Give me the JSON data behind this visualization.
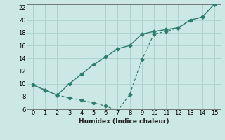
{
  "line1_x": [
    0,
    1,
    2,
    3,
    4,
    5,
    6,
    7,
    8,
    9,
    10,
    11,
    12,
    13,
    14,
    15
  ],
  "line1_y": [
    9.8,
    9.0,
    8.2,
    10.0,
    11.5,
    13.0,
    14.2,
    15.5,
    16.0,
    17.8,
    18.2,
    18.5,
    18.8,
    20.0,
    20.5,
    22.5
  ],
  "line2_x": [
    0,
    1,
    2,
    3,
    4,
    5,
    6,
    7,
    8,
    9,
    10,
    11,
    12,
    13,
    14,
    15
  ],
  "line2_y": [
    9.8,
    9.0,
    8.2,
    7.8,
    7.4,
    7.0,
    6.5,
    5.8,
    8.3,
    13.8,
    17.8,
    18.2,
    18.8,
    20.0,
    20.5,
    22.5
  ],
  "color": "#2e7d6e",
  "bg_color": "#cce8e4",
  "grid_color": "#afd4ce",
  "xlabel": "Humidex (Indice chaleur)",
  "xlim": [
    -0.5,
    15.5
  ],
  "ylim": [
    6,
    22.5
  ],
  "xticks": [
    0,
    1,
    2,
    3,
    4,
    5,
    6,
    7,
    8,
    9,
    10,
    11,
    12,
    13,
    14,
    15
  ],
  "yticks": [
    6,
    8,
    10,
    12,
    14,
    16,
    18,
    20,
    22
  ]
}
